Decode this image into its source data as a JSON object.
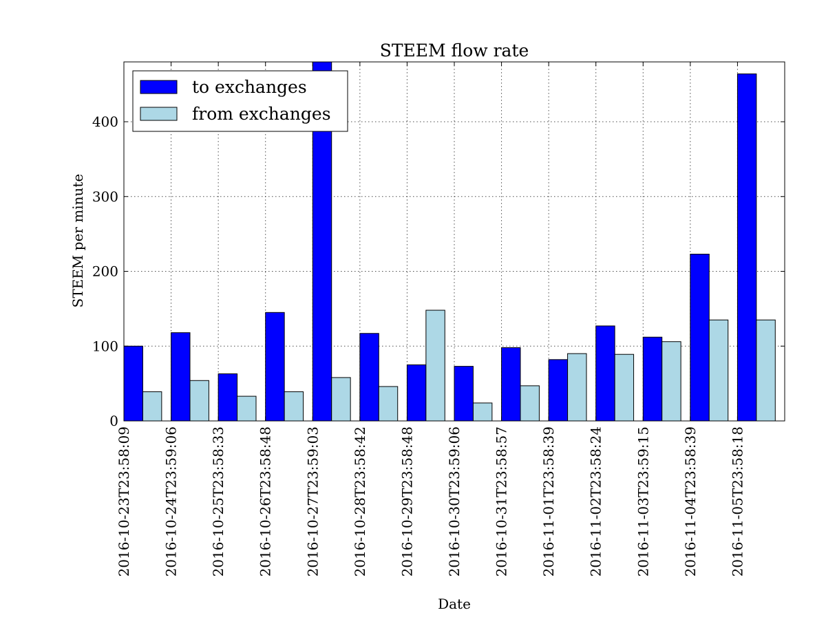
{
  "chart_data": {
    "type": "bar",
    "title": "STEEM flow rate",
    "xlabel": "Date",
    "ylabel": "STEEM per minute",
    "ylim": [
      0,
      480
    ],
    "yticks": [
      0,
      100,
      200,
      300,
      400
    ],
    "grid": true,
    "legend_position": "top-left",
    "categories": [
      "2016-10-23T23:58:09",
      "2016-10-24T23:59:06",
      "2016-10-25T23:58:33",
      "2016-10-26T23:58:48",
      "2016-10-27T23:59:03",
      "2016-10-28T23:58:42",
      "2016-10-29T23:58:48",
      "2016-10-30T23:59:06",
      "2016-10-31T23:58:57",
      "2016-11-01T23:58:39",
      "2016-11-02T23:58:24",
      "2016-11-03T23:59:15",
      "2016-11-04T23:58:39",
      "2016-11-05T23:58:18"
    ],
    "series": [
      {
        "name": "to exchanges",
        "color": "#0000ff",
        "values": [
          100,
          118,
          63,
          145,
          480,
          117,
          75,
          73,
          98,
          82,
          127,
          112,
          223,
          464
        ]
      },
      {
        "name": "from exchanges",
        "color": "#add8e6",
        "values": [
          39,
          54,
          33,
          39,
          58,
          46,
          148,
          24,
          47,
          90,
          89,
          106,
          135,
          135
        ]
      }
    ]
  }
}
